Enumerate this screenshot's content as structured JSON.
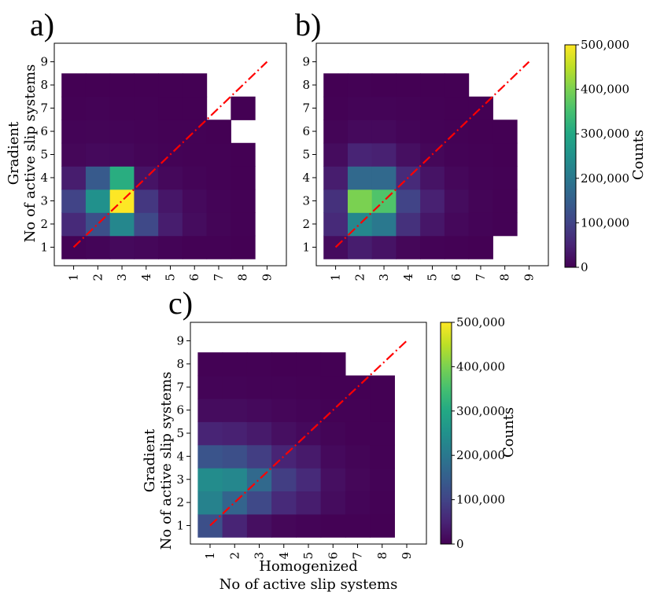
{
  "chart_data": [
    {
      "type": "heatmap",
      "panel_label": "a)",
      "xlabel": "",
      "ylabel_lines": [
        "Gradient",
        "No of active slip systems"
      ],
      "x_ticks": [
        "1",
        "2",
        "3",
        "4",
        "5",
        "6",
        "7",
        "8",
        "9"
      ],
      "y_ticks": [
        "1",
        "2",
        "3",
        "4",
        "5",
        "6",
        "7",
        "8",
        "9"
      ],
      "xlim": [
        0.2,
        9.8
      ],
      "ylim": [
        0.2,
        9.8
      ],
      "colorbar": {
        "label": "Counts",
        "min": 0,
        "max": 500000,
        "ticks": [
          "0",
          "100,000",
          "200,000",
          "300,000",
          "400,000",
          "500,000"
        ],
        "tick_values": [
          0,
          100000,
          200000,
          300000,
          400000,
          500000
        ]
      },
      "cells": [
        [
          1,
          1,
          3000
        ],
        [
          2,
          1,
          6000
        ],
        [
          3,
          1,
          12000
        ],
        [
          4,
          1,
          9000
        ],
        [
          5,
          1,
          4000
        ],
        [
          6,
          1,
          2000
        ],
        [
          7,
          1,
          1000
        ],
        [
          8,
          1,
          500
        ],
        [
          1,
          2,
          60000
        ],
        [
          2,
          2,
          120000
        ],
        [
          3,
          2,
          230000
        ],
        [
          4,
          2,
          110000
        ],
        [
          5,
          2,
          40000
        ],
        [
          6,
          2,
          15000
        ],
        [
          7,
          2,
          5000
        ],
        [
          8,
          2,
          2000
        ],
        [
          1,
          3,
          100000
        ],
        [
          2,
          3,
          250000
        ],
        [
          3,
          3,
          500000
        ],
        [
          4,
          3,
          80000
        ],
        [
          5,
          3,
          30000
        ],
        [
          6,
          3,
          12000
        ],
        [
          7,
          3,
          4000
        ],
        [
          8,
          3,
          1500
        ],
        [
          1,
          4,
          40000
        ],
        [
          2,
          4,
          140000
        ],
        [
          3,
          4,
          310000
        ],
        [
          4,
          4,
          25000
        ],
        [
          5,
          4,
          10000
        ],
        [
          6,
          4,
          4000
        ],
        [
          7,
          4,
          1500
        ],
        [
          8,
          4,
          600
        ],
        [
          1,
          5,
          8000
        ],
        [
          2,
          5,
          12000
        ],
        [
          3,
          5,
          10000
        ],
        [
          4,
          5,
          5000
        ],
        [
          5,
          5,
          3000
        ],
        [
          6,
          5,
          1500
        ],
        [
          7,
          5,
          800
        ],
        [
          8,
          5,
          300
        ],
        [
          1,
          6,
          4000
        ],
        [
          2,
          6,
          5000
        ],
        [
          3,
          6,
          4000
        ],
        [
          4,
          6,
          2500
        ],
        [
          5,
          6,
          1500
        ],
        [
          6,
          6,
          800
        ],
        [
          7,
          6,
          400
        ],
        [
          1,
          7,
          2000
        ],
        [
          2,
          7,
          2500
        ],
        [
          3,
          7,
          2000
        ],
        [
          4,
          7,
          1200
        ],
        [
          5,
          7,
          700
        ],
        [
          6,
          7,
          400
        ],
        [
          8,
          7,
          100
        ],
        [
          1,
          8,
          600
        ],
        [
          2,
          8,
          700
        ],
        [
          3,
          8,
          600
        ],
        [
          4,
          8,
          400
        ],
        [
          5,
          8,
          300
        ],
        [
          6,
          8,
          150
        ]
      ],
      "reference_line": {
        "from": [
          1,
          1
        ],
        "to": [
          9,
          9
        ],
        "style": "dash-dot",
        "color": "#ff0000"
      }
    },
    {
      "type": "heatmap",
      "panel_label": "b)",
      "xlabel": "",
      "ylabel_lines": [],
      "x_ticks": [
        "1",
        "2",
        "3",
        "4",
        "5",
        "6",
        "7",
        "8",
        "9"
      ],
      "y_ticks": [
        "1",
        "2",
        "3",
        "4",
        "5",
        "6",
        "7",
        "8",
        "9"
      ],
      "xlim": [
        0.2,
        9.8
      ],
      "ylim": [
        0.2,
        9.8
      ],
      "colorbar": {
        "label": "Counts",
        "min": 0,
        "max": 500000,
        "ticks": [
          "0",
          "100,000",
          "200,000",
          "300,000",
          "400,000",
          "500,000"
        ],
        "tick_values": [
          0,
          100000,
          200000,
          300000,
          400000,
          500000
        ]
      },
      "cells": [
        [
          1,
          1,
          15000
        ],
        [
          2,
          1,
          40000
        ],
        [
          3,
          1,
          25000
        ],
        [
          4,
          1,
          8000
        ],
        [
          5,
          1,
          3000
        ],
        [
          6,
          1,
          1500
        ],
        [
          7,
          1,
          600
        ],
        [
          1,
          2,
          60000
        ],
        [
          2,
          2,
          230000
        ],
        [
          3,
          2,
          200000
        ],
        [
          4,
          2,
          70000
        ],
        [
          5,
          2,
          30000
        ],
        [
          6,
          2,
          10000
        ],
        [
          7,
          2,
          4000
        ],
        [
          8,
          2,
          1500
        ],
        [
          1,
          3,
          70000
        ],
        [
          2,
          3,
          400000
        ],
        [
          3,
          3,
          360000
        ],
        [
          4,
          3,
          100000
        ],
        [
          5,
          3,
          45000
        ],
        [
          6,
          3,
          15000
        ],
        [
          7,
          3,
          5000
        ],
        [
          8,
          3,
          2000
        ],
        [
          1,
          4,
          40000
        ],
        [
          2,
          4,
          170000
        ],
        [
          3,
          4,
          170000
        ],
        [
          4,
          4,
          60000
        ],
        [
          5,
          4,
          25000
        ],
        [
          6,
          4,
          9000
        ],
        [
          7,
          4,
          3000
        ],
        [
          8,
          4,
          1200
        ],
        [
          1,
          5,
          15000
        ],
        [
          2,
          5,
          50000
        ],
        [
          3,
          5,
          45000
        ],
        [
          4,
          5,
          20000
        ],
        [
          5,
          5,
          8000
        ],
        [
          6,
          5,
          3000
        ],
        [
          7,
          5,
          1200
        ],
        [
          8,
          5,
          500
        ],
        [
          1,
          6,
          5000
        ],
        [
          2,
          6,
          12000
        ],
        [
          3,
          6,
          12000
        ],
        [
          4,
          6,
          6000
        ],
        [
          5,
          6,
          3000
        ],
        [
          6,
          6,
          1200
        ],
        [
          7,
          6,
          500
        ],
        [
          8,
          6,
          200
        ],
        [
          1,
          7,
          2000
        ],
        [
          2,
          7,
          4000
        ],
        [
          3,
          7,
          4000
        ],
        [
          4,
          7,
          2500
        ],
        [
          5,
          7,
          1200
        ],
        [
          6,
          7,
          600
        ],
        [
          7,
          7,
          200
        ],
        [
          1,
          8,
          500
        ],
        [
          2,
          8,
          800
        ],
        [
          3,
          8,
          700
        ],
        [
          4,
          8,
          500
        ],
        [
          5,
          8,
          300
        ],
        [
          6,
          8,
          150
        ]
      ],
      "reference_line": {
        "from": [
          1,
          1
        ],
        "to": [
          9,
          9
        ],
        "style": "dash-dot",
        "color": "#ff0000"
      }
    },
    {
      "type": "heatmap",
      "panel_label": "c)",
      "xlabel_lines": [
        "Homogenized",
        "No of active slip systems"
      ],
      "ylabel_lines": [
        "Gradient",
        "No of active slip systems"
      ],
      "x_ticks": [
        "1",
        "2",
        "3",
        "4",
        "5",
        "6",
        "7",
        "8",
        "9"
      ],
      "y_ticks": [
        "1",
        "2",
        "3",
        "4",
        "5",
        "6",
        "7",
        "8",
        "9"
      ],
      "xlim": [
        0.2,
        9.8
      ],
      "ylim": [
        0.2,
        9.8
      ],
      "colorbar": {
        "label": "Counts",
        "min": 0,
        "max": 500000,
        "ticks": [
          "0",
          "100,000",
          "200,000",
          "300,000",
          "400,000",
          "500,000"
        ],
        "tick_values": [
          0,
          100000,
          200000,
          300000,
          400000,
          500000
        ]
      },
      "cells": [
        [
          1,
          1,
          120000
        ],
        [
          2,
          1,
          50000
        ],
        [
          3,
          1,
          20000
        ],
        [
          4,
          1,
          8000
        ],
        [
          5,
          1,
          4000
        ],
        [
          6,
          1,
          2000
        ],
        [
          7,
          1,
          800
        ],
        [
          8,
          1,
          300
        ],
        [
          1,
          2,
          220000
        ],
        [
          2,
          2,
          160000
        ],
        [
          3,
          2,
          110000
        ],
        [
          4,
          2,
          60000
        ],
        [
          5,
          2,
          40000
        ],
        [
          6,
          2,
          15000
        ],
        [
          7,
          2,
          6000
        ],
        [
          8,
          2,
          2000
        ],
        [
          1,
          3,
          240000
        ],
        [
          2,
          3,
          230000
        ],
        [
          3,
          3,
          170000
        ],
        [
          4,
          3,
          90000
        ],
        [
          5,
          3,
          60000
        ],
        [
          6,
          3,
          20000
        ],
        [
          7,
          3,
          8000
        ],
        [
          8,
          3,
          3000
        ],
        [
          1,
          4,
          130000
        ],
        [
          2,
          4,
          120000
        ],
        [
          3,
          4,
          90000
        ],
        [
          4,
          4,
          50000
        ],
        [
          5,
          4,
          35000
        ],
        [
          6,
          4,
          12000
        ],
        [
          7,
          4,
          5000
        ],
        [
          8,
          4,
          2000
        ],
        [
          1,
          5,
          50000
        ],
        [
          2,
          5,
          45000
        ],
        [
          3,
          5,
          35000
        ],
        [
          4,
          5,
          20000
        ],
        [
          5,
          5,
          12000
        ],
        [
          6,
          5,
          5000
        ],
        [
          7,
          5,
          2000
        ],
        [
          8,
          5,
          800
        ],
        [
          1,
          6,
          15000
        ],
        [
          2,
          6,
          15000
        ],
        [
          3,
          6,
          12000
        ],
        [
          4,
          6,
          7000
        ],
        [
          5,
          6,
          4000
        ],
        [
          6,
          6,
          2000
        ],
        [
          7,
          6,
          800
        ],
        [
          8,
          6,
          300
        ],
        [
          1,
          7,
          4000
        ],
        [
          2,
          7,
          4000
        ],
        [
          3,
          7,
          3500
        ],
        [
          4,
          7,
          2500
        ],
        [
          5,
          7,
          1200
        ],
        [
          6,
          7,
          600
        ],
        [
          7,
          7,
          300
        ],
        [
          8,
          7,
          100
        ],
        [
          1,
          8,
          800
        ],
        [
          2,
          8,
          900
        ],
        [
          3,
          8,
          800
        ],
        [
          4,
          8,
          600
        ],
        [
          5,
          8,
          400
        ],
        [
          6,
          8,
          200
        ]
      ],
      "reference_line": {
        "from": [
          1,
          1
        ],
        "to": [
          9,
          9
        ],
        "style": "dash-dot",
        "color": "#ff0000"
      }
    }
  ],
  "colors": {
    "reference_line": "#ff0000",
    "axes": "#000000",
    "background": "#ffffff"
  }
}
